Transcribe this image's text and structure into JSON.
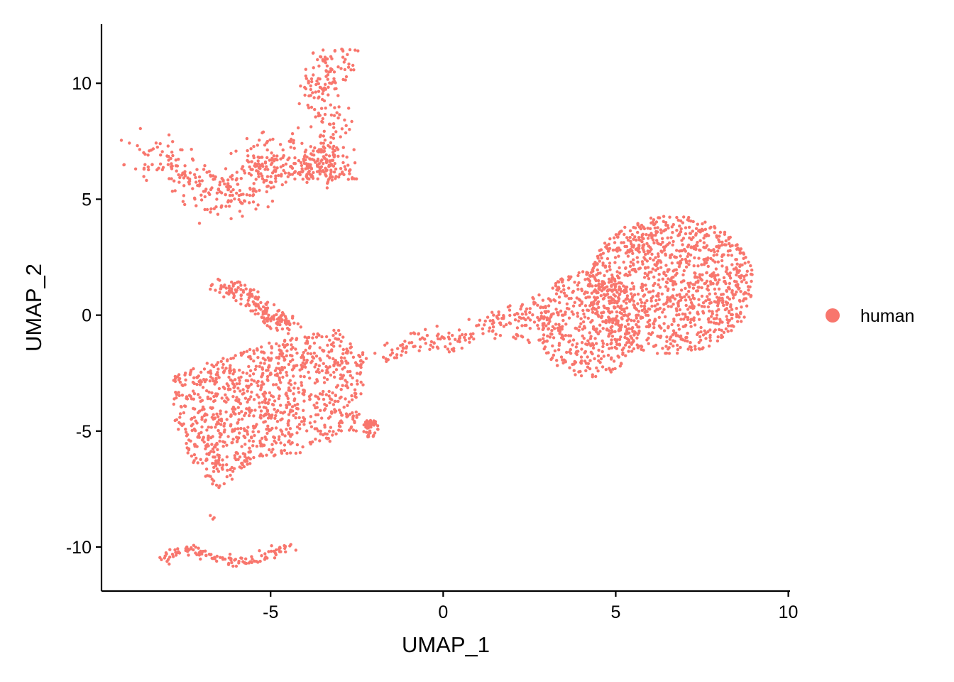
{
  "chart_data": {
    "type": "scatter",
    "title": "",
    "xlabel": "UMAP_1",
    "ylabel": "UMAP_2",
    "xlim": [
      -9.9,
      10.05
    ],
    "ylim": [
      -11.9,
      12.55
    ],
    "x_ticks": [
      -5,
      0,
      5,
      10
    ],
    "y_ticks": [
      -10,
      -5,
      0,
      5,
      10
    ],
    "x_tick_labels": [
      "-5",
      "0",
      "5",
      "10"
    ],
    "y_tick_labels": [
      "-10",
      "-5",
      "0",
      "5",
      "10"
    ],
    "grid": false,
    "legend_position": "right",
    "point_color": "#F8766D",
    "series": [
      {
        "name": "human",
        "color": "#F8766D",
        "regions": [
          {
            "shape": "ellipse",
            "cx": 6.6,
            "cy": 1.3,
            "rx": 2.4,
            "ry": 3.0,
            "count": 1100
          },
          {
            "shape": "ellipse",
            "cx": 4.2,
            "cy": -0.4,
            "rx": 1.5,
            "ry": 2.3,
            "count": 420
          },
          {
            "shape": "ellipse",
            "cx": 2.6,
            "cy": -0.2,
            "rx": 0.9,
            "ry": 1.1,
            "count": 80
          },
          {
            "shape": "curve",
            "points": [
              [
                -1.8,
                -1.8
              ],
              [
                -0.9,
                -1.2
              ],
              [
                0.2,
                -1.1
              ],
              [
                1.2,
                -0.6
              ],
              [
                1.9,
                0.0
              ]
            ],
            "spread": 0.25,
            "count": 130
          },
          {
            "shape": "polygon",
            "points": [
              [
                -7.9,
                -2.6
              ],
              [
                -5.4,
                -1.3
              ],
              [
                -3.0,
                -0.6
              ],
              [
                -2.2,
                -1.8
              ],
              [
                -2.5,
                -5.0
              ],
              [
                -4.0,
                -5.9
              ],
              [
                -5.5,
                -6.3
              ],
              [
                -6.5,
                -7.6
              ],
              [
                -7.3,
                -6.3
              ],
              [
                -7.8,
                -4.5
              ]
            ],
            "count": 1050
          },
          {
            "shape": "curve",
            "points": [
              [
                -6.6,
                1.4
              ],
              [
                -5.7,
                0.9
              ],
              [
                -5.0,
                0.0
              ],
              [
                -4.4,
                -0.5
              ]
            ],
            "spread": 0.2,
            "count": 170
          },
          {
            "shape": "ellipse",
            "cx": -2.1,
            "cy": -4.9,
            "rx": 0.22,
            "ry": 0.4,
            "count": 45
          },
          {
            "shape": "curve",
            "points": [
              [
                -8.8,
                7.0
              ],
              [
                -7.5,
                6.2
              ],
              [
                -6.5,
                5.0
              ],
              [
                -5.5,
                5.6
              ],
              [
                -5.0,
                6.4
              ],
              [
                -4.9,
                7.2
              ]
            ],
            "spread": 0.45,
            "count": 330
          },
          {
            "shape": "curve",
            "points": [
              [
                -4.2,
                6.2
              ],
              [
                -3.6,
                6.6
              ],
              [
                -3.1,
                6.1
              ],
              [
                -3.3,
                8.5
              ],
              [
                -3.6,
                10.0
              ],
              [
                -3.0,
                11.4
              ]
            ],
            "spread": 0.35,
            "count": 330
          },
          {
            "shape": "curve",
            "points": [
              [
                -8.3,
                -10.6
              ],
              [
                -7.6,
                -10.1
              ],
              [
                -6.8,
                -10.4
              ],
              [
                -6.0,
                -10.7
              ],
              [
                -5.2,
                -10.4
              ],
              [
                -4.5,
                -9.9
              ]
            ],
            "spread": 0.12,
            "count": 120
          },
          {
            "shape": "curve",
            "points": [
              [
                -6.7,
                -8.6
              ],
              [
                -6.6,
                -8.9
              ]
            ],
            "spread": 0.05,
            "count": 3
          }
        ]
      }
    ]
  }
}
